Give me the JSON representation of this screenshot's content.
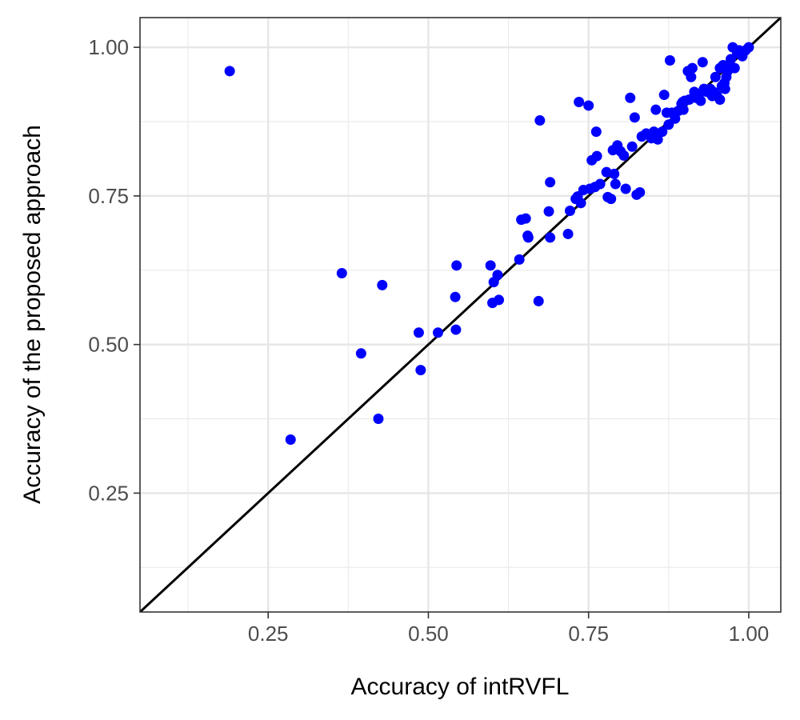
{
  "chart_data": {
    "type": "scatter",
    "title": "",
    "xlabel": "Accuracy of intRVFL",
    "ylabel": "Accuracy of the proposed approach",
    "xlim": [
      0.05,
      1.05
    ],
    "ylim": [
      0.05,
      1.05
    ],
    "x_ticks": [
      0.25,
      0.5,
      0.75,
      1.0
    ],
    "x_tick_labels": [
      "0.25",
      "0.50",
      "0.75",
      "1.00"
    ],
    "y_ticks": [
      0.25,
      0.5,
      0.75,
      1.0
    ],
    "y_tick_labels": [
      "0.25",
      "0.50",
      "0.75",
      "1.00"
    ],
    "grid": true,
    "reference_line": {
      "type": "identity",
      "color": "#000000"
    },
    "point_color": "#0000ff",
    "points": [
      [
        0.19,
        0.96
      ],
      [
        0.285,
        0.34
      ],
      [
        0.365,
        0.62
      ],
      [
        0.395,
        0.485
      ],
      [
        0.422,
        0.375
      ],
      [
        0.428,
        0.6
      ],
      [
        0.485,
        0.52
      ],
      [
        0.488,
        0.457
      ],
      [
        0.515,
        0.52
      ],
      [
        0.542,
        0.58
      ],
      [
        0.543,
        0.525
      ],
      [
        0.544,
        0.633
      ],
      [
        0.597,
        0.633
      ],
      [
        0.6,
        0.57
      ],
      [
        0.602,
        0.605
      ],
      [
        0.608,
        0.617
      ],
      [
        0.61,
        0.575
      ],
      [
        0.642,
        0.643
      ],
      [
        0.645,
        0.71
      ],
      [
        0.652,
        0.712
      ],
      [
        0.655,
        0.683
      ],
      [
        0.656,
        0.68
      ],
      [
        0.672,
        0.573
      ],
      [
        0.674,
        0.877
      ],
      [
        0.688,
        0.724
      ],
      [
        0.69,
        0.773
      ],
      [
        0.69,
        0.68
      ],
      [
        0.718,
        0.686
      ],
      [
        0.721,
        0.725
      ],
      [
        0.73,
        0.745
      ],
      [
        0.733,
        0.749
      ],
      [
        0.735,
        0.908
      ],
      [
        0.738,
        0.738
      ],
      [
        0.742,
        0.76
      ],
      [
        0.75,
        0.902
      ],
      [
        0.752,
        0.762
      ],
      [
        0.755,
        0.81
      ],
      [
        0.76,
        0.765
      ],
      [
        0.762,
        0.858
      ],
      [
        0.763,
        0.817
      ],
      [
        0.768,
        0.77
      ],
      [
        0.778,
        0.79
      ],
      [
        0.78,
        0.748
      ],
      [
        0.785,
        0.745
      ],
      [
        0.788,
        0.827
      ],
      [
        0.79,
        0.787
      ],
      [
        0.792,
        0.77
      ],
      [
        0.795,
        0.835
      ],
      [
        0.8,
        0.825
      ],
      [
        0.805,
        0.818
      ],
      [
        0.808,
        0.762
      ],
      [
        0.815,
        0.915
      ],
      [
        0.818,
        0.833
      ],
      [
        0.822,
        0.882
      ],
      [
        0.825,
        0.752
      ],
      [
        0.83,
        0.756
      ],
      [
        0.833,
        0.85
      ],
      [
        0.84,
        0.855
      ],
      [
        0.848,
        0.847
      ],
      [
        0.852,
        0.858
      ],
      [
        0.855,
        0.895
      ],
      [
        0.858,
        0.845
      ],
      [
        0.865,
        0.858
      ],
      [
        0.868,
        0.92
      ],
      [
        0.872,
        0.89
      ],
      [
        0.875,
        0.87
      ],
      [
        0.877,
        0.978
      ],
      [
        0.88,
        0.89
      ],
      [
        0.885,
        0.88
      ],
      [
        0.89,
        0.893
      ],
      [
        0.895,
        0.905
      ],
      [
        0.898,
        0.895
      ],
      [
        0.9,
        0.91
      ],
      [
        0.905,
        0.96
      ],
      [
        0.907,
        0.912
      ],
      [
        0.91,
        0.95
      ],
      [
        0.912,
        0.965
      ],
      [
        0.915,
        0.925
      ],
      [
        0.918,
        0.915
      ],
      [
        0.922,
        0.92
      ],
      [
        0.925,
        0.91
      ],
      [
        0.928,
        0.975
      ],
      [
        0.93,
        0.93
      ],
      [
        0.935,
        0.925
      ],
      [
        0.94,
        0.93
      ],
      [
        0.943,
        0.918
      ],
      [
        0.948,
        0.95
      ],
      [
        0.95,
        0.92
      ],
      [
        0.955,
        0.965
      ],
      [
        0.958,
        0.935
      ],
      [
        0.96,
        0.97
      ],
      [
        0.962,
        0.94
      ],
      [
        0.963,
        0.93
      ],
      [
        0.965,
        0.95
      ],
      [
        0.967,
        0.96
      ],
      [
        0.968,
        0.97
      ],
      [
        0.972,
        0.98
      ],
      [
        0.975,
        1.0
      ],
      [
        0.978,
        0.965
      ],
      [
        0.982,
        0.99
      ],
      [
        0.985,
        0.995
      ],
      [
        0.99,
        0.985
      ],
      [
        0.995,
        0.995
      ],
      [
        1.0,
        1.0
      ],
      [
        0.955,
        0.912
      ],
      [
        0.945,
        0.925
      ],
      [
        0.897,
        0.908
      ]
    ]
  }
}
